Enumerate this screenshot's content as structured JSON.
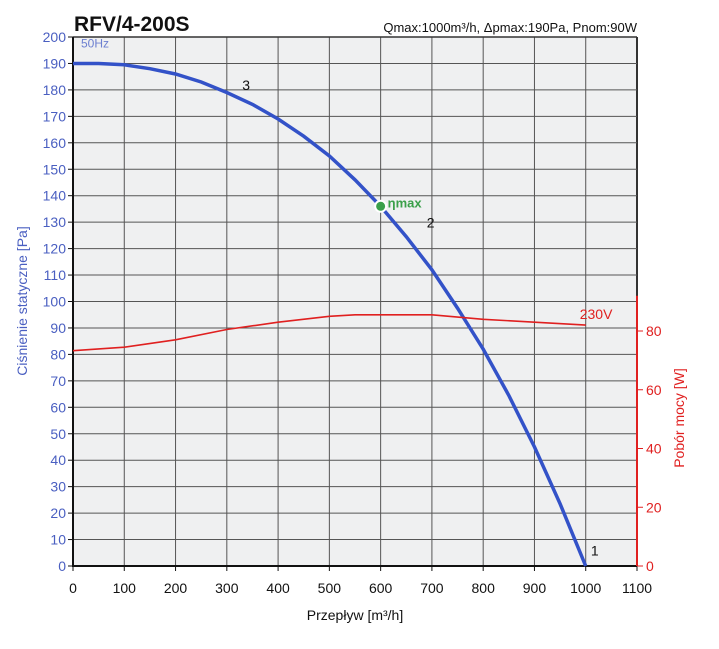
{
  "chart_data": {
    "type": "line",
    "title": "RFV/4-200S",
    "subtitle": "Qmax:1000m³/h, Δpmax:190Pa, Pnom:90W",
    "xlabel": "Przepływ [m³/h]",
    "ylabel": "Ciśnienie statyczne [Pa]",
    "y2label": "Pobór mocy [W]",
    "xlim": [
      0,
      1100
    ],
    "ylim": [
      0,
      200
    ],
    "y2lim": [
      0,
      80
    ],
    "xticks": [
      0,
      100,
      200,
      300,
      400,
      500,
      600,
      700,
      800,
      900,
      1000,
      1100
    ],
    "yticks": [
      0,
      10,
      20,
      30,
      40,
      50,
      60,
      70,
      80,
      90,
      100,
      110,
      120,
      130,
      140,
      150,
      160,
      170,
      180,
      190,
      200
    ],
    "y2ticks": [
      0,
      20,
      40,
      60,
      80
    ],
    "grid": true,
    "series": [
      {
        "name": "50Hz",
        "axis": "left",
        "color": "#3352c8",
        "x": [
          0,
          50,
          100,
          150,
          200,
          250,
          300,
          350,
          400,
          450,
          500,
          550,
          600,
          650,
          700,
          750,
          800,
          850,
          900,
          950,
          1000
        ],
        "y": [
          190,
          190,
          189.5,
          188,
          186,
          183,
          179,
          174.5,
          169,
          162.5,
          155,
          146,
          136,
          124.5,
          112,
          97.5,
          82,
          64.5,
          45,
          23.5,
          0
        ]
      },
      {
        "name": "230V",
        "axis": "right",
        "color": "#e02020",
        "x": [
          0,
          100,
          200,
          300,
          400,
          500,
          550,
          600,
          700,
          800,
          900,
          1000
        ],
        "y": [
          73.3,
          74.5,
          77,
          80.5,
          83,
          85,
          85.5,
          85.5,
          85.5,
          84,
          83,
          82
        ]
      }
    ],
    "annotations": [
      {
        "text": "3",
        "x": 330,
        "y": 180
      },
      {
        "text": "2",
        "x": 690,
        "y": 128
      },
      {
        "text": "1",
        "x": 1010,
        "y": 4
      },
      {
        "text": "ηmax",
        "x": 600,
        "y": 136,
        "color": "#3aa04a"
      }
    ]
  }
}
